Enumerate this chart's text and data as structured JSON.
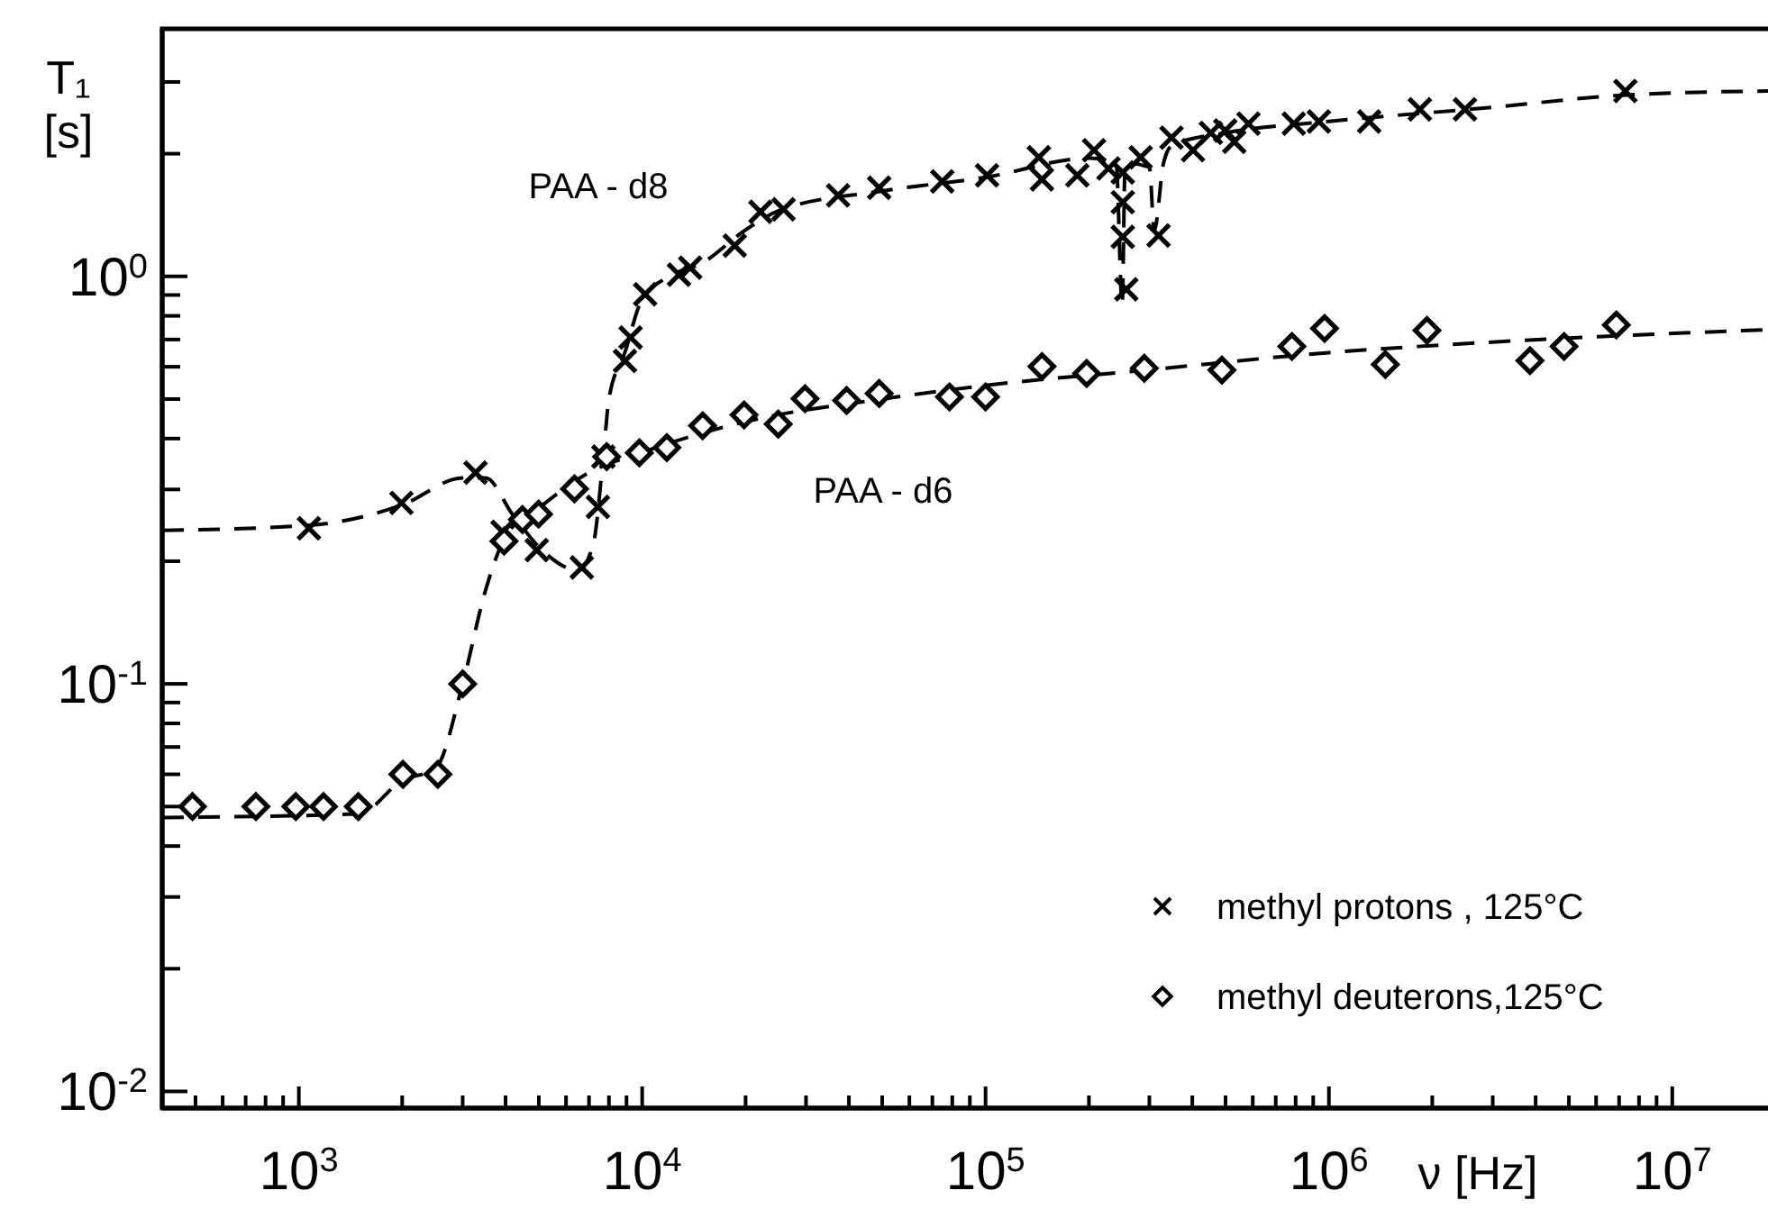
{
  "chart_data": {
    "type": "scatter",
    "xlabel": "ν [Hz]",
    "ylabel": "T₁ [s]",
    "log": "xy",
    "grid": false,
    "legend": "bottom right",
    "xlim": [
      400,
      19000000
    ],
    "ylim": [
      0.0091,
      4.05
    ],
    "xticks": [
      {
        "value": 500,
        "label": null
      },
      {
        "value": 600,
        "label": null
      },
      {
        "value": 700,
        "label": null
      },
      {
        "value": 800,
        "label": null
      },
      {
        "value": 900,
        "label": null
      },
      {
        "value": 1000,
        "label": "10$^{3}$"
      },
      {
        "value": 2000,
        "label": null
      },
      {
        "value": 3000,
        "label": null
      },
      {
        "value": 4000,
        "label": null
      },
      {
        "value": 5000,
        "label": null
      },
      {
        "value": 6000,
        "label": null
      },
      {
        "value": 7000,
        "label": null
      },
      {
        "value": 8000,
        "label": null
      },
      {
        "value": 9000,
        "label": null
      },
      {
        "value": 10000,
        "label": "10$^{4}$"
      },
      {
        "value": 20000,
        "label": null
      },
      {
        "value": 30000,
        "label": null
      },
      {
        "value": 40000,
        "label": null
      },
      {
        "value": 50000,
        "label": null
      },
      {
        "value": 60000,
        "label": null
      },
      {
        "value": 70000,
        "label": null
      },
      {
        "value": 80000,
        "label": null
      },
      {
        "value": 90000,
        "label": null
      },
      {
        "value": 100000,
        "label": "10$^{5}$"
      },
      {
        "value": 200000,
        "label": null
      },
      {
        "value": 300000,
        "label": null
      },
      {
        "value": 400000,
        "label": null
      },
      {
        "value": 500000,
        "label": null
      },
      {
        "value": 600000,
        "label": null
      },
      {
        "value": 700000,
        "label": null
      },
      {
        "value": 800000,
        "label": null
      },
      {
        "value": 900000,
        "label": null
      },
      {
        "value": 1000000,
        "label": "10$^{6}$"
      },
      {
        "value": 2000000,
        "label": null
      },
      {
        "value": 3000000,
        "label": null
      },
      {
        "value": 4000000,
        "label": null
      },
      {
        "value": 5000000,
        "label": null
      },
      {
        "value": 6000000,
        "label": null
      },
      {
        "value": 7000000,
        "label": null
      },
      {
        "value": 8000000,
        "label": null
      },
      {
        "value": 9000000,
        "label": null
      },
      {
        "value": 10000000,
        "label": "10$^{7}$"
      }
    ],
    "yticks": [
      {
        "value": 0.01,
        "label": "10$^{-2}$"
      },
      {
        "value": 0.02,
        "label": null
      },
      {
        "value": 0.03,
        "label": null
      },
      {
        "value": 0.04,
        "label": null
      },
      {
        "value": 0.05,
        "label": null
      },
      {
        "value": 0.06,
        "label": null
      },
      {
        "value": 0.07,
        "label": null
      },
      {
        "value": 0.08,
        "label": null
      },
      {
        "value": 0.09,
        "label": null
      },
      {
        "value": 0.1,
        "label": "10$^{-1}$"
      },
      {
        "value": 0.2,
        "label": null
      },
      {
        "value": 0.3,
        "label": null
      },
      {
        "value": 0.4,
        "label": null
      },
      {
        "value": 0.5,
        "label": null
      },
      {
        "value": 0.6,
        "label": null
      },
      {
        "value": 0.7,
        "label": null
      },
      {
        "value": 0.8,
        "label": null
      },
      {
        "value": 0.9,
        "label": null
      },
      {
        "value": 1,
        "label": "10$^{0}$"
      },
      {
        "value": 2,
        "label": null
      },
      {
        "value": 3,
        "label": null
      }
    ],
    "annotations": [
      "PAA - d8",
      "PAA - d6"
    ],
    "series": [
      {
        "name": "methyl protons , 125°C",
        "marker": "cross",
        "color": "#000000",
        "x": [
          1070,
          1990,
          3270,
          3920,
          4930,
          6670,
          7430,
          7710,
          8910,
          9250,
          10200,
          12800,
          13800,
          18600,
          22100,
          25800,
          37200,
          49000,
          74800,
          101000,
          143000,
          146000,
          185000,
          207000,
          228000,
          251000,
          283000,
          251000,
          251000,
          319000,
          257000,
          348000,
          402000,
          453000,
          499000,
          530000,
          583000,
          790000,
          935000,
          1310000,
          1840000,
          2490000,
          7300000
        ],
        "values": [
          0.241,
          0.278,
          0.33,
          0.236,
          0.213,
          0.193,
          0.272,
          0.361,
          0.62,
          0.708,
          0.904,
          1.01,
          1.05,
          1.19,
          1.44,
          1.46,
          1.58,
          1.65,
          1.71,
          1.77,
          1.96,
          1.73,
          1.77,
          2.04,
          1.84,
          1.8,
          1.96,
          1.52,
          1.25,
          1.26,
          0.93,
          2.19,
          2.04,
          2.25,
          2.28,
          2.14,
          2.37,
          2.37,
          2.4,
          2.4,
          2.57,
          2.57,
          2.85
        ]
      },
      {
        "name": "methyl deuterons,125°C",
        "marker": "diamond",
        "color": "#000000",
        "x": [
          490,
          750,
          980,
          1180,
          1490,
          2010,
          2540,
          3000,
          3960,
          4480,
          4990,
          6350,
          7880,
          9810,
          11800,
          15000,
          19800,
          24900,
          29800,
          39400,
          49000,
          78500,
          100000,
          146000,
          197000,
          290000,
          488000,
          780000,
          971000,
          1460000,
          1930000,
          3850000,
          4840000,
          6870000
        ],
        "values": [
          0.05,
          0.05,
          0.05,
          0.05,
          0.05,
          0.06,
          0.06,
          0.1,
          0.224,
          0.253,
          0.261,
          0.301,
          0.361,
          0.369,
          0.38,
          0.43,
          0.457,
          0.434,
          0.501,
          0.496,
          0.516,
          0.506,
          0.506,
          0.601,
          0.578,
          0.595,
          0.589,
          0.673,
          0.745,
          0.608,
          0.737,
          0.621,
          0.673,
          0.76
        ]
      },
      {
        "type": "line",
        "line_style": "dashed",
        "marker": "none",
        "color": "#000000",
        "x": [
          400,
          1070,
          2000,
          3000,
          3500,
          4200,
          5200,
          6500,
          7200,
          7700,
          8000,
          8900,
          10000,
          12000,
          15000,
          20000,
          25000,
          50000,
          100000,
          200000,
          240000,
          250000,
          255000,
          300000,
          310000,
          330000,
          350000,
          500000,
          1000000,
          3000000,
          7000000,
          19000000
        ],
        "values": [
          0.238,
          0.245,
          0.275,
          0.32,
          0.32,
          0.26,
          0.21,
          0.19,
          0.22,
          0.36,
          0.5,
          0.65,
          0.88,
          1.0,
          1.08,
          1.3,
          1.45,
          1.62,
          1.75,
          1.95,
          1.9,
          0.85,
          1.9,
          1.85,
          1.3,
          1.9,
          2.1,
          2.25,
          2.4,
          2.6,
          2.78,
          2.85
        ]
      },
      {
        "type": "line",
        "line_style": "dashed",
        "marker": "none",
        "color": "#000000",
        "x": [
          400,
          1500,
          2000,
          2500,
          3000,
          3500,
          4000,
          5000,
          7000,
          10000,
          20000,
          50000,
          100000,
          300000,
          1000000,
          3000000,
          19000000
        ],
        "values": [
          0.047,
          0.048,
          0.058,
          0.062,
          0.1,
          0.17,
          0.23,
          0.27,
          0.33,
          0.37,
          0.44,
          0.5,
          0.54,
          0.59,
          0.65,
          0.69,
          0.74
        ]
      }
    ]
  }
}
